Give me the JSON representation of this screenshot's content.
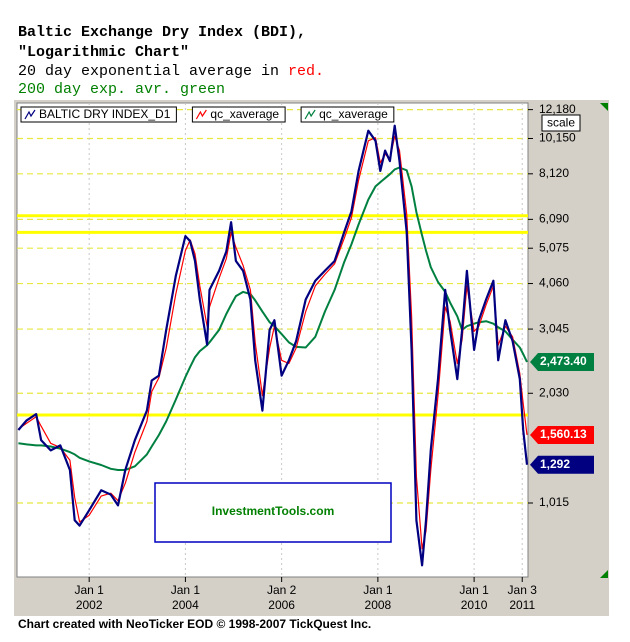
{
  "chart_data": {
    "type": "line",
    "title": "Baltic Exchange Dry Index (BDI),",
    "subtitle": "\"Logarithmic Chart\"",
    "note_red": [
      {
        "text": "20 day exponential average in ",
        "color": "#000000"
      },
      {
        "text": "red.",
        "color": "#ff0000"
      }
    ],
    "note_green": {
      "text": "200 day exp. avr. green",
      "color": "#008000"
    },
    "scale_label": "scale",
    "watermark": "InvestmentTools.com",
    "footer": "Chart created with NeoTicker EOD © 1998-2007 TickQuest Inc.",
    "log_scale": true,
    "ylim": [
      636,
      12700
    ],
    "yticks": [
      {
        "value": 1015,
        "label": "1,015"
      },
      {
        "value": 2030,
        "label": "2,030"
      },
      {
        "value": 3045,
        "label": "3,045"
      },
      {
        "value": 4060,
        "label": "4,060"
      },
      {
        "value": 5075,
        "label": "5,075"
      },
      {
        "value": 6090,
        "label": "6,090"
      },
      {
        "value": 8120,
        "label": "8,120"
      },
      {
        "value": 10150,
        "label": "10,150"
      },
      {
        "value": 12180,
        "label": "12,180"
      }
    ],
    "xlim": [
      2000.5,
      2011.12
    ],
    "xticks": [
      {
        "value": 2002.0,
        "label": "Jan 1 2002"
      },
      {
        "value": 2004.0,
        "label": "Jan 1 2004"
      },
      {
        "value": 2006.0,
        "label": "Jan 2 2006"
      },
      {
        "value": 2008.0,
        "label": "Jan 1 2008"
      },
      {
        "value": 2010.0,
        "label": "Jan 1 2010"
      },
      {
        "value": 2011.0,
        "label": "Jan 3 2011"
      }
    ],
    "hlines": {
      "color": "#ffff00",
      "values": [
        6230,
        5610,
        1770
      ]
    },
    "grid": true,
    "legend": "top-left",
    "x": [
      2000.53,
      2000.7,
      2000.9,
      2001.0,
      2001.2,
      2001.4,
      2001.6,
      2001.7,
      2001.8,
      2002.0,
      2002.25,
      2002.45,
      2002.6,
      2002.75,
      2002.95,
      2003.2,
      2003.3,
      2003.45,
      2003.6,
      2003.8,
      2004.0,
      2004.1,
      2004.2,
      2004.3,
      2004.45,
      2004.5,
      2004.7,
      2004.85,
      2004.95,
      2005.05,
      2005.2,
      2005.35,
      2005.45,
      2005.6,
      2005.75,
      2005.85,
      2006.0,
      2006.15,
      2006.3,
      2006.5,
      2006.7,
      2006.9,
      2007.1,
      2007.3,
      2007.45,
      2007.6,
      2007.8,
      2007.95,
      2008.05,
      2008.15,
      2008.25,
      2008.35,
      2008.45,
      2008.6,
      2008.7,
      2008.8,
      2008.92,
      2009.0,
      2009.1,
      2009.25,
      2009.4,
      2009.5,
      2009.65,
      2009.75,
      2009.85,
      2010.0,
      2010.1,
      2010.25,
      2010.4,
      2010.5,
      2010.65,
      2010.8,
      2010.95,
      2011.02,
      2011.1
    ],
    "series": [
      {
        "name": "BALTIC DRY INDEX_D1",
        "color": "#000080",
        "width": 2.2,
        "values": [
          1610,
          1710,
          1780,
          1510,
          1415,
          1460,
          1250,
          910,
          880,
          970,
          1100,
          1070,
          1000,
          1250,
          1510,
          1820,
          2200,
          2270,
          3030,
          4260,
          5480,
          5300,
          4680,
          3670,
          2760,
          3900,
          4400,
          4970,
          5980,
          4680,
          4400,
          3670,
          2500,
          1820,
          3030,
          3220,
          2270,
          2500,
          2820,
          3670,
          4130,
          4400,
          4680,
          5620,
          6400,
          8270,
          10660,
          10000,
          8270,
          9400,
          8800,
          11000,
          8800,
          5620,
          2670,
          910,
          685,
          910,
          1420,
          2220,
          3900,
          3030,
          2220,
          3030,
          4400,
          2670,
          3220,
          3670,
          4130,
          2500,
          3220,
          2820,
          2220,
          1610,
          1292
        ],
        "end_label": {
          "value": 1292,
          "label": "1,292"
        }
      },
      {
        "name": "qc_xaverage",
        "color": "#ff0000",
        "width": 1.2,
        "values": [
          1620,
          1680,
          1750,
          1650,
          1480,
          1440,
          1330,
          1050,
          900,
          940,
          1060,
          1080,
          1030,
          1150,
          1400,
          1700,
          2050,
          2240,
          2700,
          3800,
          5000,
          5350,
          4900,
          4000,
          3100,
          3500,
          4200,
          4750,
          5600,
          5100,
          4550,
          3900,
          2800,
          2000,
          2700,
          3100,
          2500,
          2450,
          2700,
          3400,
          4000,
          4300,
          4600,
          5400,
          6150,
          7800,
          10000,
          10200,
          8700,
          9200,
          8900,
          10300,
          9400,
          6300,
          3300,
          1200,
          760,
          850,
          1250,
          2000,
          3500,
          3200,
          2450,
          2850,
          4000,
          3000,
          3100,
          3550,
          4000,
          2750,
          3100,
          2900,
          2300,
          1900,
          1560.13
        ],
        "end_label": {
          "value": 1560.13,
          "label": "1,560.13"
        }
      },
      {
        "name": "qc_xaverage",
        "color": "#008040",
        "width": 2,
        "values": [
          1480,
          1470,
          1460,
          1460,
          1450,
          1430,
          1400,
          1380,
          1350,
          1320,
          1290,
          1260,
          1250,
          1250,
          1280,
          1380,
          1450,
          1560,
          1700,
          1950,
          2250,
          2400,
          2550,
          2650,
          2750,
          2800,
          3030,
          3350,
          3550,
          3750,
          3850,
          3800,
          3650,
          3400,
          3180,
          3100,
          2950,
          2800,
          2720,
          2710,
          2900,
          3400,
          3900,
          4650,
          5200,
          5900,
          6900,
          7500,
          7700,
          7900,
          8100,
          8350,
          8450,
          8300,
          7500,
          6370,
          5500,
          5000,
          4500,
          4100,
          3850,
          3600,
          3300,
          3030,
          3100,
          3150,
          3180,
          3200,
          3150,
          3080,
          3000,
          2850,
          2710,
          2600,
          2473.4
        ],
        "end_label": {
          "value": 2473.4,
          "label": "2,473.40"
        }
      }
    ]
  }
}
